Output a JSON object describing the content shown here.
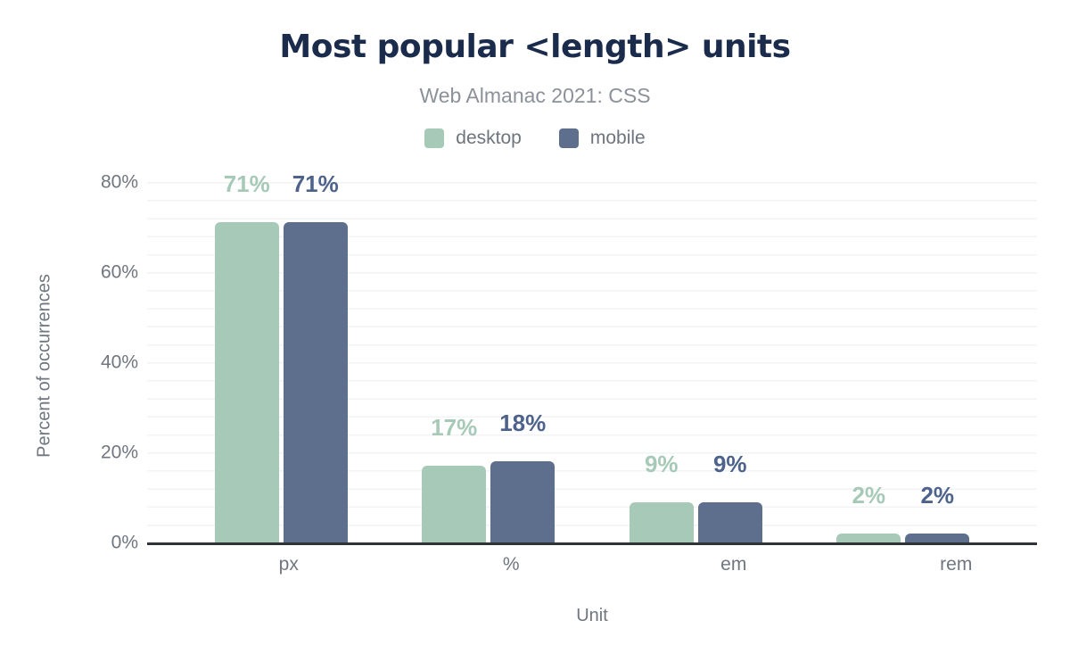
{
  "header": {
    "title": "Most popular <length> units",
    "subtitle": "Web Almanac 2021: CSS"
  },
  "legend": {
    "items": [
      {
        "label": "desktop",
        "color": "#a7c9b8"
      },
      {
        "label": "mobile",
        "color": "#5d6f8c"
      }
    ]
  },
  "chart_data": {
    "type": "bar",
    "title": "Most popular <length> units",
    "subtitle": "Web Almanac 2021: CSS",
    "categories": [
      "px",
      "%",
      "em",
      "rem"
    ],
    "series": [
      {
        "name": "desktop",
        "values": [
          71,
          17,
          9,
          2
        ],
        "color": "#a7c9b8",
        "label_color": "#a7c9b8"
      },
      {
        "name": "mobile",
        "values": [
          71,
          18,
          9,
          2
        ],
        "color": "#5d6f8c",
        "label_color": "#4e638b"
      }
    ],
    "value_suffix": "%",
    "xlabel": "Unit",
    "ylabel": "Percent of occurrences",
    "ylim": [
      0,
      80
    ],
    "yticks": [
      0,
      20,
      40,
      60,
      80
    ],
    "ytick_suffix": "%",
    "grid": "horizontal-minor-every-4",
    "legend_position": "top",
    "colors": {
      "title": "#1b2b4b",
      "subtitle": "#8c9199",
      "axis_text": "#70767f",
      "gridline": "#f2f3f5",
      "axis_line": "#2f3338"
    }
  }
}
